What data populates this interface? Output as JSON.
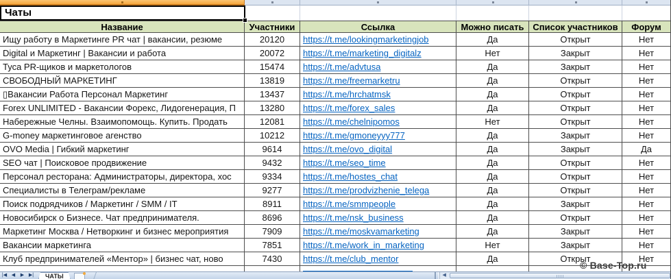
{
  "selection": {
    "cell_value": "Чаты"
  },
  "table": {
    "columns": [
      {
        "label": "Название"
      },
      {
        "label": "Участники"
      },
      {
        "label": "Ссылка"
      },
      {
        "label": "Можно писать"
      },
      {
        "label": "Список участников"
      },
      {
        "label": "Форум"
      }
    ],
    "rows": [
      {
        "name": "Ищу работу в Маркетинге PR чат | вакансии, резюме",
        "members": "20120",
        "link": "https://t.me/lookingmarketingjob",
        "can_write": "Да",
        "member_list": "Открыт",
        "forum": "Нет"
      },
      {
        "name": "Digital и Маркетинг | Вакансии и работа",
        "members": "20072",
        "link": "https://t.me/marketing_digitalz",
        "can_write": "Нет",
        "member_list": "Закрыт",
        "forum": "Нет"
      },
      {
        "name": "Туса PR-щиков и маркетологов",
        "members": "15474",
        "link": "https://t.me/advtusa",
        "can_write": "Да",
        "member_list": "Закрыт",
        "forum": "Нет"
      },
      {
        "name": "СВОБОДНЫЙ МАРКЕТИНГ",
        "members": "13819",
        "link": "https://t.me/freemarketru",
        "can_write": "Да",
        "member_list": "Открыт",
        "forum": "Нет"
      },
      {
        "name": "▯Вакансии Работа Персонал Маркетинг",
        "members": "13437",
        "link": "https://t.me/hrchatmsk",
        "can_write": "Да",
        "member_list": "Открыт",
        "forum": "Нет"
      },
      {
        "name": "Forex UNLIMITED - Вакансии Форекс, Лидогенерация, П",
        "members": "13280",
        "link": "https://t.me/forex_sales",
        "can_write": "Да",
        "member_list": "Открыт",
        "forum": "Нет"
      },
      {
        "name": "Набережные Челны. Взаимопомощь. Купить. Продать",
        "members": "12081",
        "link": "https://t.me/chelnipomos",
        "can_write": "Нет",
        "member_list": "Открыт",
        "forum": "Нет"
      },
      {
        "name": "G-money маркетинговое агенство",
        "members": "10212",
        "link": "https://t.me/gmoneyyy777",
        "can_write": "Да",
        "member_list": "Закрыт",
        "forum": "Нет"
      },
      {
        "name": "OVO Media | Гибкий маркетинг",
        "members": "9614",
        "link": "https://t.me/ovo_digital",
        "can_write": "Да",
        "member_list": "Закрыт",
        "forum": "Да"
      },
      {
        "name": "SEO чат | Поисковое продвижение",
        "members": "9432",
        "link": "https://t.me/seo_time",
        "can_write": "Да",
        "member_list": "Открыт",
        "forum": "Нет"
      },
      {
        "name": "Персонал ресторана: Администраторы, директора, хос",
        "members": "9334",
        "link": "https://t.me/hostes_chat",
        "can_write": "Да",
        "member_list": "Открыт",
        "forum": "Нет"
      },
      {
        "name": "Специалисты в Телеграм/рекламе",
        "members": "9277",
        "link": "https://t.me/prodvizhenie_telega",
        "can_write": "Да",
        "member_list": "Открыт",
        "forum": "Нет"
      },
      {
        "name": "Поиск подрядчиков / Маркетинг / SMM / IT",
        "members": "8911",
        "link": "https://t.me/smmpeople",
        "can_write": "Да",
        "member_list": "Закрыт",
        "forum": "Нет"
      },
      {
        "name": "Новосибирск о Бизнесе. Чат предпринимателя.",
        "members": "8696",
        "link": "https://t.me/nsk_business",
        "can_write": "Да",
        "member_list": "Открыт",
        "forum": "Нет"
      },
      {
        "name": "Маркетинг Москва / Нетворкинг и бизнес мероприятия",
        "members": "7909",
        "link": "https://t.me/moskvamarketing",
        "can_write": "Да",
        "member_list": "Закрыт",
        "forum": "Нет"
      },
      {
        "name": "Вакансии маркетинга",
        "members": "7851",
        "link": "https://t.me/work_in_marketing",
        "can_write": "Нет",
        "member_list": "Закрыт",
        "forum": "Нет"
      },
      {
        "name": "Клуб предпринимателей «Ментор» | бизнес чат, ново",
        "members": "7430",
        "link": "https://t.me/club_mentor",
        "can_write": "Да",
        "member_list": "Открыт",
        "forum": "Нет"
      }
    ]
  },
  "sheet_tabs": {
    "active": "ЧАТЫ"
  },
  "watermark": "© Base-Top.ru",
  "colors": {
    "header_bg": "#D8E4BC",
    "selected_column_header": "#F6A93F",
    "link": "#0563C1"
  }
}
